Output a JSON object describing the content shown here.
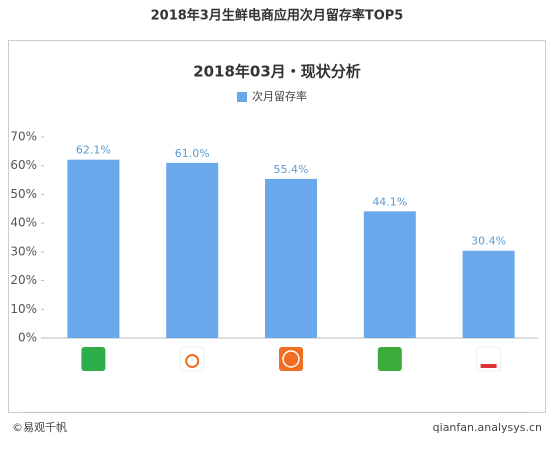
{
  "title": "2018年3月生鲜电商应用次月留存率TOP5",
  "chart_data": {
    "type": "bar",
    "title": "2018年03月・现状分析",
    "categories": [
      null,
      null,
      null,
      null,
      null
    ],
    "series": [
      {
        "name": "次月留存率",
        "color": "#6aa8ec",
        "values": [
          62.1,
          61.0,
          55.4,
          44.1,
          30.4
        ],
        "value_labels": [
          "62.1%",
          "61.0%",
          "55.4%",
          "44.1%",
          "30.4%"
        ]
      }
    ],
    "ylim": [
      0,
      70
    ],
    "yticks": [
      {
        "value": 0,
        "label": "0%"
      },
      {
        "value": 10,
        "label": "10%"
      },
      {
        "value": 20,
        "label": "20%"
      },
      {
        "value": 30,
        "label": "30%"
      },
      {
        "value": 40,
        "label": "40%"
      },
      {
        "value": 50,
        "label": "50%"
      },
      {
        "value": 60,
        "label": "60%"
      },
      {
        "value": 70,
        "label": "70%"
      }
    ],
    "grid": false,
    "legend": "top"
  },
  "footer": {
    "left": "©易观千帆",
    "right": "qianfan.analysys.cn"
  }
}
